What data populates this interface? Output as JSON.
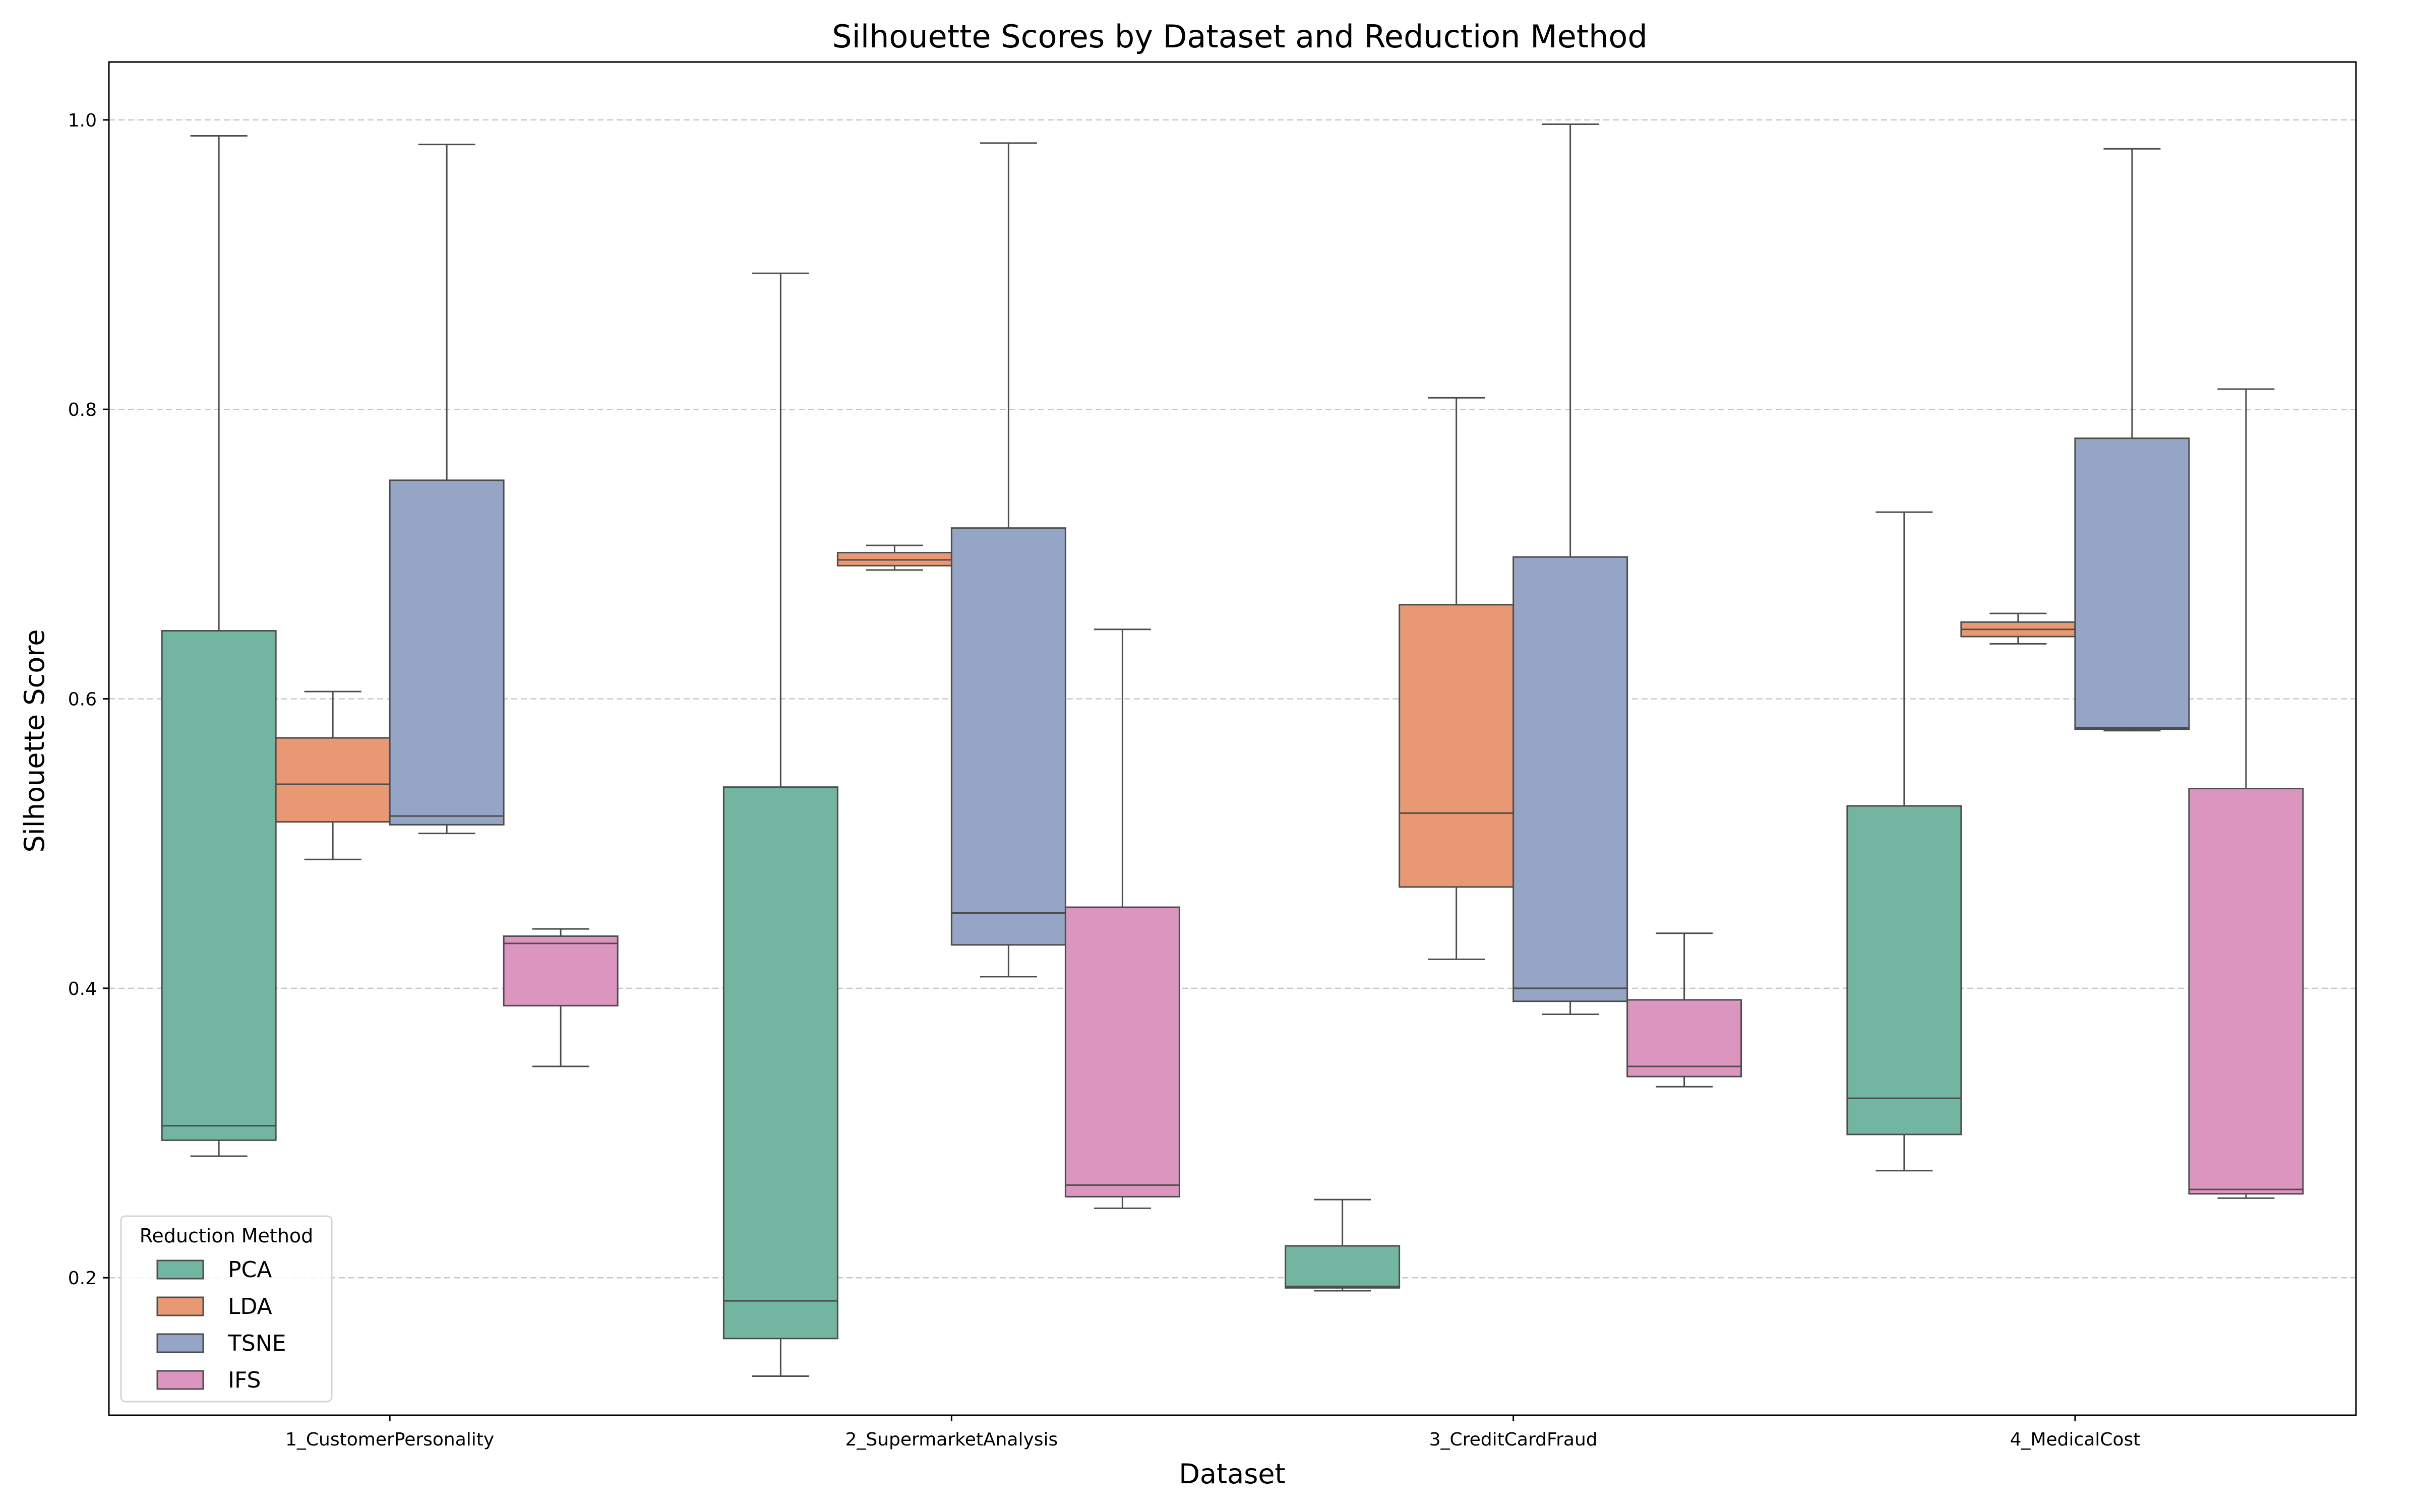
{
  "chart_data": {
    "type": "box",
    "title": "Silhouette Scores by Dataset and Reduction Method",
    "xlabel": "Dataset",
    "ylabel": "Silhouette Score",
    "ylim": [
      0.105,
      1.04
    ],
    "yticks": [
      "0.2",
      "0.4",
      "0.6",
      "0.8",
      "1.0"
    ],
    "grid": "y-dashed",
    "legend": {
      "title": "Reduction Method",
      "placement": "lower-left"
    },
    "categories": [
      "1_CustomerPersonality",
      "2_SupermarketAnalysis",
      "3_CreditCardFraud",
      "4_MedicalCost"
    ],
    "series": [
      {
        "name": "PCA",
        "color": "#72b5a0",
        "boxes": [
          {
            "whislo": 0.284,
            "q1": 0.295,
            "med": 0.305,
            "q3": 0.647,
            "whishi": 0.989
          },
          {
            "whislo": 0.132,
            "q1": 0.158,
            "med": 0.184,
            "q3": 0.539,
            "whishi": 0.894
          },
          {
            "whislo": 0.191,
            "q1": 0.193,
            "med": 0.194,
            "q3": 0.222,
            "whishi": 0.254
          },
          {
            "whislo": 0.274,
            "q1": 0.299,
            "med": 0.324,
            "q3": 0.526,
            "whishi": 0.729
          }
        ]
      },
      {
        "name": "LDA",
        "color": "#e89873",
        "boxes": [
          {
            "whislo": 0.489,
            "q1": 0.515,
            "med": 0.541,
            "q3": 0.573,
            "whishi": 0.605
          },
          {
            "whislo": 0.689,
            "q1": 0.692,
            "med": 0.696,
            "q3": 0.701,
            "whishi": 0.706
          },
          {
            "whislo": 0.42,
            "q1": 0.47,
            "med": 0.521,
            "q3": 0.665,
            "whishi": 0.808
          },
          {
            "whislo": 0.638,
            "q1": 0.643,
            "med": 0.648,
            "q3": 0.653,
            "whishi": 0.659
          }
        ]
      },
      {
        "name": "TSNE",
        "color": "#95a5c5",
        "boxes": [
          {
            "whislo": 0.507,
            "q1": 0.513,
            "med": 0.519,
            "q3": 0.751,
            "whishi": 0.983
          },
          {
            "whislo": 0.408,
            "q1": 0.43,
            "med": 0.452,
            "q3": 0.718,
            "whishi": 0.984
          },
          {
            "whislo": 0.382,
            "q1": 0.391,
            "med": 0.4,
            "q3": 0.698,
            "whishi": 0.997
          },
          {
            "whislo": 0.578,
            "q1": 0.579,
            "med": 0.58,
            "q3": 0.78,
            "whishi": 0.98
          }
        ]
      },
      {
        "name": "IFS",
        "color": "#dc95bf",
        "boxes": [
          {
            "whislo": 0.346,
            "q1": 0.388,
            "med": 0.431,
            "q3": 0.436,
            "whishi": 0.441
          },
          {
            "whislo": 0.248,
            "q1": 0.256,
            "med": 0.264,
            "q3": 0.456,
            "whishi": 0.648
          },
          {
            "whislo": 0.332,
            "q1": 0.339,
            "med": 0.346,
            "q3": 0.392,
            "whishi": 0.438
          },
          {
            "whislo": 0.255,
            "q1": 0.258,
            "med": 0.261,
            "q3": 0.538,
            "whishi": 0.814
          }
        ]
      }
    ]
  }
}
